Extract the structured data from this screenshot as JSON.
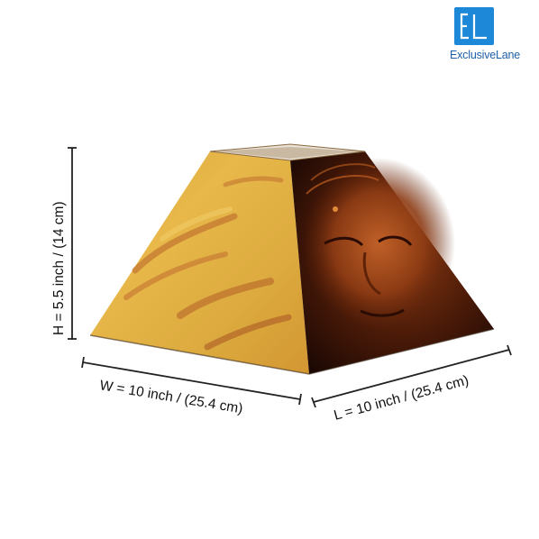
{
  "brand": {
    "name": "ExclusiveLane",
    "monogram": "EL",
    "color": "#1e88d8"
  },
  "dimensions": {
    "height": "H = 5.5 inch / (14 cm)",
    "width": "W = 10 inch / (25.4 cm)",
    "length": "L = 10 inch / (25.4 cm)"
  },
  "product": {
    "name": "Pyramid lamp shade with Buddha face painting"
  }
}
